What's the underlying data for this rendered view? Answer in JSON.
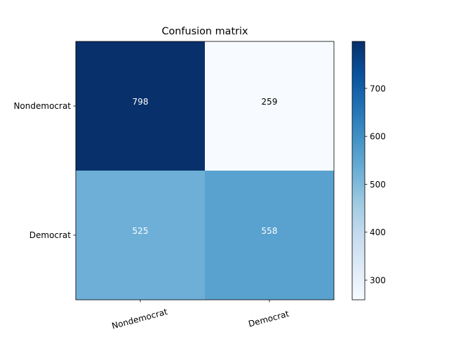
{
  "chart_data": {
    "type": "heatmap",
    "title": "Confusion matrix",
    "row_labels": [
      "Nondemocrat",
      "Democrat"
    ],
    "col_labels": [
      "Nondemocrat",
      "Democrat"
    ],
    "values": [
      [
        798,
        259
      ],
      [
        525,
        558
      ]
    ],
    "cell_text_colors": [
      [
        "#ffffff",
        "#000000"
      ],
      [
        "#ffffff",
        "#ffffff"
      ]
    ],
    "colormap": "Blues",
    "colorbar": {
      "range": [
        259,
        798
      ],
      "ticks": [
        300,
        400,
        500,
        600,
        700
      ],
      "tick_labels": [
        "300",
        "400",
        "500",
        "600",
        "700"
      ]
    }
  }
}
